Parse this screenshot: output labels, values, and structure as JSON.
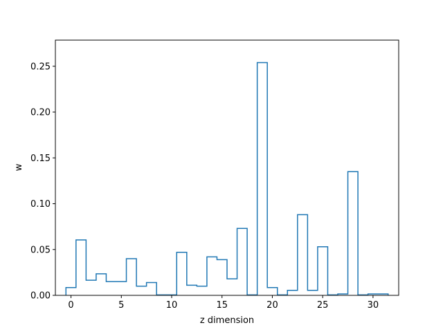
{
  "chart_data": {
    "type": "step",
    "title": "",
    "xlabel": "z dimension",
    "ylabel": "w",
    "xlim": [
      -1.55,
      32.55
    ],
    "ylim": [
      0,
      0.2785
    ],
    "xticks": [
      0,
      5,
      10,
      15,
      20,
      25,
      30
    ],
    "xtick_labels": [
      "0",
      "5",
      "10",
      "15",
      "20",
      "25",
      "30"
    ],
    "yticks": [
      0.0,
      0.05,
      0.1,
      0.15,
      0.2,
      0.25
    ],
    "ytick_labels": [
      "0.00",
      "0.05",
      "0.10",
      "0.15",
      "0.20",
      "0.25"
    ],
    "grid": false,
    "color": "#1f77b4",
    "series": [
      {
        "x": [
          0,
          1,
          2,
          3,
          4,
          5,
          6,
          7,
          8,
          9,
          10,
          11,
          12,
          13,
          14,
          15,
          16,
          17,
          18,
          19,
          20,
          21,
          22,
          23,
          24,
          25,
          26,
          27,
          28,
          29,
          30,
          31
        ],
        "values": [
          0.0085,
          0.0605,
          0.0165,
          0.0235,
          0.015,
          0.015,
          0.04,
          0.01,
          0.014,
          0.0005,
          0.0005,
          0.047,
          0.011,
          0.01,
          0.042,
          0.039,
          0.018,
          0.073,
          0.0005,
          0.254,
          0.0085,
          0.0005,
          0.0055,
          0.088,
          0.0055,
          0.053,
          0.0005,
          0.0015,
          0.135,
          0.0005,
          0.0015,
          0.0015
        ]
      }
    ]
  }
}
